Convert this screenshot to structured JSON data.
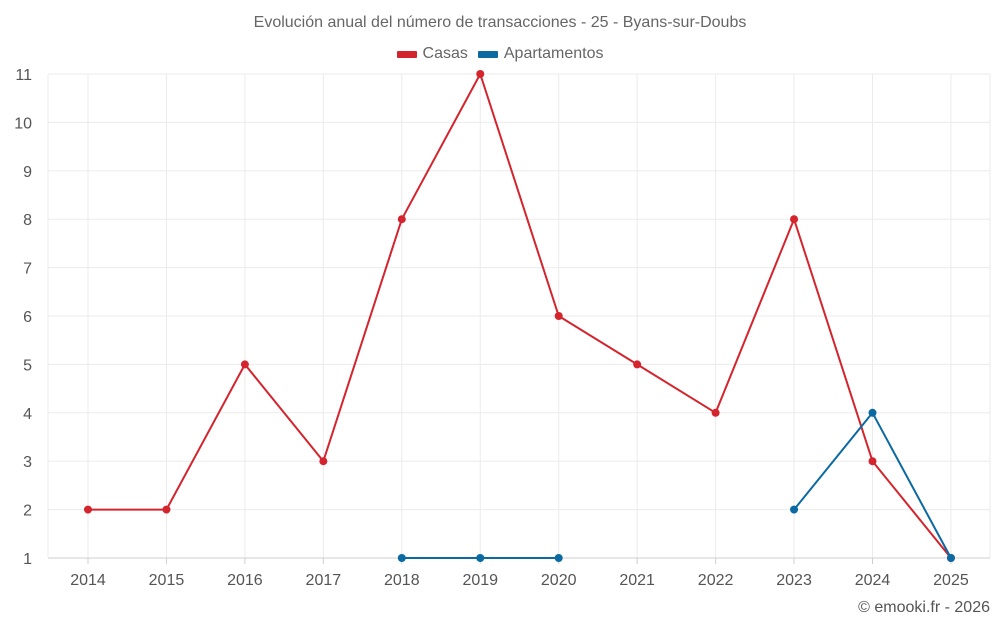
{
  "chart_data": {
    "type": "line",
    "title": "Evolución anual del número de transacciones - 25 - Byans-sur-Doubs",
    "categories": [
      "2014",
      "2015",
      "2016",
      "2017",
      "2018",
      "2019",
      "2020",
      "2021",
      "2022",
      "2023",
      "2024",
      "2025"
    ],
    "ylim": [
      1,
      11
    ],
    "yticks": [
      "1",
      "2",
      "3",
      "4",
      "5",
      "6",
      "7",
      "8",
      "9",
      "10",
      "11"
    ],
    "grid": true,
    "legend_position": "top-center",
    "series": [
      {
        "name": "Casas",
        "color": "#d4242d",
        "values": [
          2,
          2,
          5,
          3,
          8,
          11,
          6,
          5,
          4,
          8,
          3,
          1
        ]
      },
      {
        "name": "Apartamentos",
        "color": "#0b6aa2",
        "values": [
          null,
          null,
          null,
          null,
          1,
          1,
          1,
          null,
          null,
          2,
          4,
          1
        ]
      }
    ]
  },
  "footer": {
    "credit": "© emooki.fr - 2026"
  }
}
